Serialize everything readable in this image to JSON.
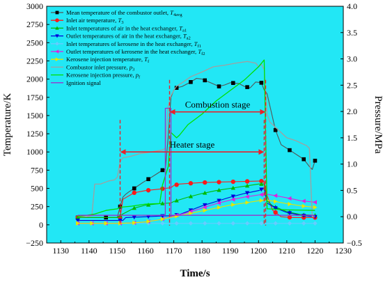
{
  "chart_data": {
    "type": "line",
    "xlabel": "Time/s",
    "ylabel": "Temperature/K",
    "y2label": "Pressure/MPa",
    "xlim": [
      1125,
      1230
    ],
    "ylim": [
      -250,
      3000
    ],
    "y2lim": [
      -0.5,
      4.0
    ],
    "xticks": [
      "1130",
      "1140",
      "1150",
      "1160",
      "1170",
      "1180",
      "1190",
      "1200",
      "1210",
      "1220",
      "1230"
    ],
    "yticks": [
      "−250",
      "0",
      "250",
      "500",
      "750",
      "1000",
      "1250",
      "1500",
      "1750",
      "2000",
      "2250",
      "2500",
      "2750",
      "3000"
    ],
    "y2ticks": [
      "−0.5",
      "0.0",
      "0.5",
      "1.0",
      "1.5",
      "2.0",
      "2.5",
      "3.0",
      "3.5",
      "4.0"
    ],
    "background": "#22E7F5",
    "legend_position": "top-left",
    "annotations": {
      "combustion": {
        "label": "Combustion stage",
        "x_start": 1168.5,
        "x_end": 1202.5,
        "y": 1550,
        "color": "#E8202A"
      },
      "heater": {
        "label": "Heater stage",
        "x_start": 1151,
        "x_end": 1202,
        "y": 1000,
        "color": "#E8202A"
      }
    },
    "series": [
      {
        "name": "Mean temperature of the combustor outlet, T4avg",
        "legend_main": "Mean temperature of the combustor outlet, ",
        "legend_var": "T",
        "legend_sub": "4avg",
        "axis": "left",
        "color": "#555555",
        "marker": "square",
        "marker_color": "#000000",
        "x": [
          1136,
          1140,
          1143,
          1147,
          1150,
          1151,
          1152,
          1153,
          1154,
          1156,
          1159,
          1162,
          1164,
          1166,
          1167,
          1168,
          1169,
          1170,
          1171,
          1173,
          1176,
          1178,
          1180,
          1183,
          1186,
          1188,
          1190,
          1193,
          1195,
          1197,
          1199,
          1201,
          1202,
          1203,
          1206,
          1208,
          1210,
          1212,
          1214,
          1216,
          1218,
          1219,
          1220
        ],
        "y": [
          100,
          100,
          100,
          100,
          100,
          250,
          380,
          420,
          450,
          500,
          580,
          650,
          700,
          750,
          760,
          1200,
          1750,
          1850,
          1880,
          1900,
          1960,
          2010,
          2000,
          1950,
          1900,
          1920,
          1950,
          1940,
          1900,
          1880,
          1960,
          1950,
          1850,
          1800,
          1300,
          1100,
          1050,
          1000,
          950,
          900,
          800,
          760,
          880
        ],
        "marker_x": [
          1136,
          1146,
          1151,
          1156,
          1161,
          1166,
          1171,
          1176,
          1181,
          1186,
          1191,
          1196,
          1201,
          1206,
          1211,
          1216,
          1220
        ]
      },
      {
        "name": "Inlet air temperature, T3",
        "legend_main": "Inlet air temperature, ",
        "legend_var": "T",
        "legend_sub": "3",
        "axis": "left",
        "color": "#FF1A1A",
        "marker": "circle",
        "marker_color": "#FF1A1A",
        "x": [
          1136,
          1150,
          1151,
          1152,
          1156,
          1160,
          1165,
          1169,
          1170,
          1172,
          1176,
          1180,
          1185,
          1190,
          1195,
          1200,
          1202,
          1203,
          1205,
          1208,
          1212,
          1216,
          1220
        ],
        "y": [
          100,
          100,
          100,
          350,
          440,
          470,
          490,
          510,
          540,
          560,
          570,
          580,
          585,
          590,
          595,
          600,
          600,
          400,
          200,
          110,
          100,
          100,
          100
        ],
        "marker_x": [
          1136,
          1151,
          1156,
          1161,
          1166,
          1171,
          1176,
          1181,
          1186,
          1191,
          1196,
          1201,
          1206,
          1211,
          1216,
          1220
        ]
      },
      {
        "name": "Inlet temperatures of air in the heat exchanger, Ta1",
        "legend_main": "Inlet temperatures of air in the heat exchanger, ",
        "legend_var": "T",
        "legend_sub": "a1",
        "axis": "left",
        "color": "#00BB00",
        "marker": "triangle-up",
        "marker_color": "#00BB00",
        "x": [
          1136,
          1150,
          1152,
          1156,
          1160,
          1165,
          1169,
          1170,
          1175,
          1180,
          1185,
          1190,
          1195,
          1200,
          1202,
          1203,
          1205,
          1210,
          1215,
          1220
        ],
        "y": [
          100,
          100,
          150,
          230,
          270,
          290,
          300,
          320,
          380,
          430,
          470,
          500,
          530,
          560,
          560,
          330,
          260,
          180,
          140,
          130
        ],
        "marker_x": [
          1136,
          1151,
          1156,
          1161,
          1166,
          1171,
          1176,
          1181,
          1186,
          1191,
          1196,
          1201,
          1206,
          1211,
          1216,
          1220
        ]
      },
      {
        "name": "Outlet temperatures of air in the heat exchanger, Ta2",
        "legend_main": "Outlet temperatures of air in the heat exchanger, ",
        "legend_var": "T",
        "legend_sub": "a2",
        "axis": "left",
        "color": "#0000DD",
        "marker": "triangle-down",
        "marker_color": "#0000DD",
        "x": [
          1136,
          1152,
          1153,
          1160,
          1165,
          1169,
          1172,
          1176,
          1180,
          1185,
          1190,
          1195,
          1200,
          1202,
          1203,
          1206,
          1210,
          1215,
          1220
        ],
        "y": [
          60,
          60,
          100,
          110,
          120,
          125,
          140,
          200,
          260,
          320,
          380,
          430,
          470,
          500,
          300,
          230,
          170,
          130,
          110
        ],
        "marker_x": [
          1136,
          1151,
          1156,
          1161,
          1166,
          1171,
          1176,
          1181,
          1186,
          1191,
          1196,
          1201,
          1206,
          1211,
          1216,
          1220
        ]
      },
      {
        "name": "Inlet temperatures of kerosene in the heat exchanger, Tf1",
        "legend_main": "Inlet temperatures of kerosene in the heat exchanger, ",
        "legend_var": "T",
        "legend_sub": "f1",
        "axis": "left",
        "color": "#66CCFF",
        "marker": "diamond",
        "marker_color": "#66CCFF",
        "x": [
          1136,
          1220
        ],
        "y": [
          20,
          20
        ],
        "marker_x": [
          1136,
          1141,
          1146,
          1151,
          1156,
          1161,
          1166,
          1171,
          1176,
          1181,
          1186,
          1191,
          1196,
          1201,
          1206,
          1211,
          1216,
          1220
        ]
      },
      {
        "name": "Outlet temperatures of kerosene in the heat exchanger, Tf2",
        "legend_main": "Outlet temperatures of kerosene in the heat exchanger, ",
        "legend_var": "T",
        "legend_sub": "f2",
        "axis": "left",
        "color": "#E020E0",
        "marker": "triangle-left",
        "marker_color": "#E020E0",
        "x": [
          1136,
          1150,
          1155,
          1160,
          1165,
          1170,
          1175,
          1180,
          1185,
          1190,
          1195,
          1200,
          1203,
          1206,
          1210,
          1215,
          1220
        ],
        "y": [
          20,
          20,
          25,
          40,
          70,
          120,
          170,
          230,
          290,
          340,
          380,
          410,
          420,
          400,
          370,
          330,
          310
        ],
        "marker_x": [
          1136,
          1141,
          1146,
          1151,
          1156,
          1161,
          1166,
          1171,
          1176,
          1181,
          1186,
          1191,
          1196,
          1201,
          1206,
          1211,
          1216,
          1220
        ]
      },
      {
        "name": "Kerosene injection temperature, Tf",
        "legend_main": "Kerosene injection temperature, ",
        "legend_var": "T",
        "legend_sub": "f",
        "axis": "left",
        "color": "#E6E600",
        "marker": "triangle-right",
        "marker_color": "#E6E600",
        "x": [
          1136,
          1150,
          1155,
          1160,
          1165,
          1170,
          1175,
          1180,
          1185,
          1190,
          1195,
          1200,
          1203,
          1206,
          1210,
          1215,
          1220
        ],
        "y": [
          20,
          20,
          25,
          40,
          70,
          110,
          150,
          190,
          230,
          270,
          300,
          330,
          340,
          320,
          290,
          260,
          240
        ],
        "marker_x": [
          1136,
          1141,
          1146,
          1151,
          1156,
          1161,
          1166,
          1171,
          1176,
          1181,
          1186,
          1191,
          1196,
          1201,
          1206,
          1211,
          1216,
          1220
        ]
      },
      {
        "name": "Combustor inlet pressure, p3",
        "legend_main": "Combustor inlet pressure, ",
        "legend_var": "p",
        "legend_sub": "3",
        "axis": "right",
        "color": "#A0A0A0",
        "marker": "none",
        "x": [
          1136,
          1139,
          1141,
          1142,
          1144,
          1147,
          1149,
          1150,
          1151,
          1152,
          1155,
          1158,
          1161,
          1164,
          1166,
          1167,
          1168,
          1169,
          1170,
          1171,
          1173,
          1176,
          1180,
          1184,
          1188,
          1192,
          1196,
          1199,
          1200,
          1201,
          1202,
          1203,
          1204,
          1207,
          1210,
          1213,
          1215,
          1217,
          1218,
          1219,
          1220
        ],
        "y": [
          0.0,
          0.0,
          0.02,
          0.62,
          0.62,
          0.68,
          0.7,
          0.75,
          1.05,
          1.12,
          1.15,
          1.2,
          1.22,
          1.25,
          1.27,
          1.3,
          2.1,
          2.3,
          2.4,
          2.48,
          2.55,
          2.66,
          2.75,
          2.85,
          2.88,
          2.92,
          2.95,
          2.92,
          2.85,
          2.9,
          2.8,
          1.95,
          1.8,
          1.65,
          1.5,
          1.45,
          1.4,
          1.35,
          1.3,
          0.0,
          0.0
        ]
      },
      {
        "name": "Kerosene injection pressure, pf",
        "legend_main": "Kerosene injection pressure, ",
        "legend_var": "p",
        "legend_sub": "f",
        "axis": "right",
        "color": "#00E000",
        "marker": "none",
        "x": [
          1136,
          1142,
          1146,
          1150,
          1151,
          1155,
          1160,
          1165,
          1166,
          1168,
          1169,
          1170,
          1171,
          1172,
          1175,
          1180,
          1185,
          1190,
          1195,
          1200,
          1202,
          1203,
          1210,
          1220
        ],
        "y": [
          0.0,
          0.05,
          0.12,
          0.15,
          0.18,
          0.2,
          0.24,
          0.25,
          0.6,
          0.95,
          1.6,
          1.55,
          1.5,
          1.55,
          1.75,
          1.95,
          2.2,
          2.4,
          2.6,
          2.85,
          2.98,
          0.15,
          0.13,
          0.12
        ]
      },
      {
        "name": "Ignition signal",
        "legend_main": "Ignition signal",
        "legend_var": "",
        "legend_sub": "",
        "axis": "left",
        "color": "#9933CC",
        "marker": "none",
        "x": [
          1136,
          1167,
          1167,
          1169,
          1169,
          1220
        ],
        "y": [
          130,
          130,
          1600,
          1600,
          130,
          130
        ]
      }
    ]
  }
}
